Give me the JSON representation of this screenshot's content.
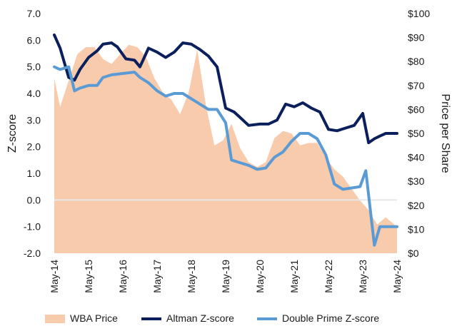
{
  "chart_data": {
    "type": "area+line",
    "title": "",
    "xlabel": "",
    "ylabel_left": "Z-score",
    "ylabel_right": "Price per Share",
    "ylim_left": [
      -2.0,
      7.0
    ],
    "ylim_right": [
      0,
      100
    ],
    "yticks_left": [
      "-2.0",
      "-1.0",
      "0.0",
      "1.0",
      "2.0",
      "3.0",
      "4.0",
      "5.0",
      "6.0",
      "7.0"
    ],
    "yticks_right": [
      "$0",
      "$10",
      "$20",
      "$30",
      "$40",
      "$50",
      "$60",
      "$70",
      "$80",
      "$90",
      "$100"
    ],
    "x_range": [
      2014.33,
      2024.33
    ],
    "x_ticks": [
      {
        "label": "May-14",
        "x": 2014.33
      },
      {
        "label": "May-15",
        "x": 2015.33
      },
      {
        "label": "May-16",
        "x": 2016.33
      },
      {
        "label": "May-17",
        "x": 2017.33
      },
      {
        "label": "May-18",
        "x": 2018.33
      },
      {
        "label": "May-19",
        "x": 2019.33
      },
      {
        "label": "May-20",
        "x": 2020.33
      },
      {
        "label": "May-21",
        "x": 2021.33
      },
      {
        "label": "May-22",
        "x": 2022.33
      },
      {
        "label": "May-23",
        "x": 2023.33
      },
      {
        "label": "May-24",
        "x": 2024.33
      }
    ],
    "series": [
      {
        "name": "WBA Price",
        "axis": "right",
        "kind": "area",
        "color": "#F8CBAD",
        "x": [
          2014.33,
          2014.5,
          2014.75,
          2015.0,
          2015.25,
          2015.5,
          2015.75,
          2016.0,
          2016.25,
          2016.5,
          2016.75,
          2017.0,
          2017.25,
          2017.5,
          2017.75,
          2018.0,
          2018.25,
          2018.5,
          2018.75,
          2019.0,
          2019.25,
          2019.5,
          2019.75,
          2020.0,
          2020.25,
          2020.5,
          2020.75,
          2021.0,
          2021.25,
          2021.5,
          2021.75,
          2022.0,
          2022.25,
          2022.5,
          2022.75,
          2023.0,
          2023.25,
          2023.5,
          2023.75,
          2024.0,
          2024.33
        ],
        "values": [
          73,
          61,
          72,
          83,
          86,
          86,
          81,
          79,
          83,
          87,
          86,
          82,
          73,
          67,
          64,
          58,
          67,
          85,
          62,
          45,
          47,
          54,
          44,
          38,
          36,
          38,
          48,
          51,
          50,
          45,
          46,
          46,
          40,
          35,
          32,
          27,
          22,
          18,
          12,
          15,
          11
        ]
      },
      {
        "name": "Altman Z-score",
        "axis": "left",
        "kind": "line",
        "color": "#0B1F5C",
        "x": [
          2014.33,
          2014.5,
          2014.75,
          2014.92,
          2015.08,
          2015.33,
          2015.58,
          2015.75,
          2016.0,
          2016.17,
          2016.42,
          2016.67,
          2016.83,
          2017.08,
          2017.33,
          2017.58,
          2017.83,
          2018.08,
          2018.33,
          2018.58,
          2018.83,
          2019.08,
          2019.33,
          2019.58,
          2019.75,
          2020.0,
          2020.33,
          2020.58,
          2020.83,
          2021.08,
          2021.33,
          2021.58,
          2021.83,
          2022.08,
          2022.33,
          2022.58,
          2022.83,
          2023.08,
          2023.33,
          2023.5,
          2023.67,
          2023.83,
          2024.0,
          2024.33
        ],
        "values": [
          6.2,
          5.7,
          4.6,
          4.5,
          4.9,
          5.35,
          5.6,
          5.85,
          5.9,
          5.75,
          5.3,
          5.25,
          5.0,
          5.7,
          5.55,
          5.35,
          5.55,
          5.9,
          5.85,
          5.65,
          5.4,
          5.0,
          3.45,
          3.3,
          3.1,
          2.8,
          2.85,
          2.85,
          3.0,
          3.6,
          3.5,
          3.65,
          3.45,
          3.3,
          2.65,
          2.6,
          2.7,
          2.8,
          3.25,
          2.15,
          2.3,
          2.4,
          2.5,
          2.5
        ]
      },
      {
        "name": "Double Prime Z-score",
        "axis": "left",
        "kind": "line",
        "color": "#5B9BD5",
        "x": [
          2014.33,
          2014.5,
          2014.75,
          2014.92,
          2015.08,
          2015.33,
          2015.58,
          2015.75,
          2016.0,
          2016.33,
          2016.67,
          2016.83,
          2017.08,
          2017.33,
          2017.58,
          2017.83,
          2018.08,
          2018.33,
          2018.58,
          2018.83,
          2019.08,
          2019.33,
          2019.5,
          2019.75,
          2020.0,
          2020.25,
          2020.5,
          2020.75,
          2021.0,
          2021.25,
          2021.5,
          2021.75,
          2022.0,
          2022.25,
          2022.5,
          2022.75,
          2023.0,
          2023.25,
          2023.42,
          2023.58,
          2023.67,
          2023.83,
          2024.0,
          2024.33
        ],
        "values": [
          5.0,
          4.9,
          5.0,
          4.1,
          4.2,
          4.3,
          4.3,
          4.6,
          4.7,
          4.75,
          4.8,
          4.6,
          4.4,
          4.1,
          3.9,
          4.0,
          4.0,
          3.8,
          3.6,
          3.4,
          3.4,
          2.9,
          1.5,
          1.4,
          1.3,
          1.15,
          1.2,
          1.6,
          1.8,
          2.2,
          2.5,
          2.5,
          2.3,
          1.7,
          0.6,
          0.4,
          0.45,
          0.5,
          1.1,
          -0.7,
          -1.7,
          -1.0,
          -1.0,
          -1.0
        ]
      }
    ],
    "legend": {
      "position": "bottom",
      "items": [
        {
          "label": "WBA Price",
          "color": "#F8CBAD",
          "kind": "swatch"
        },
        {
          "label": "Altman Z-score",
          "color": "#0B1F5C",
          "kind": "line"
        },
        {
          "label": "Double Prime Z-score",
          "color": "#5B9BD5",
          "kind": "line"
        }
      ]
    }
  }
}
